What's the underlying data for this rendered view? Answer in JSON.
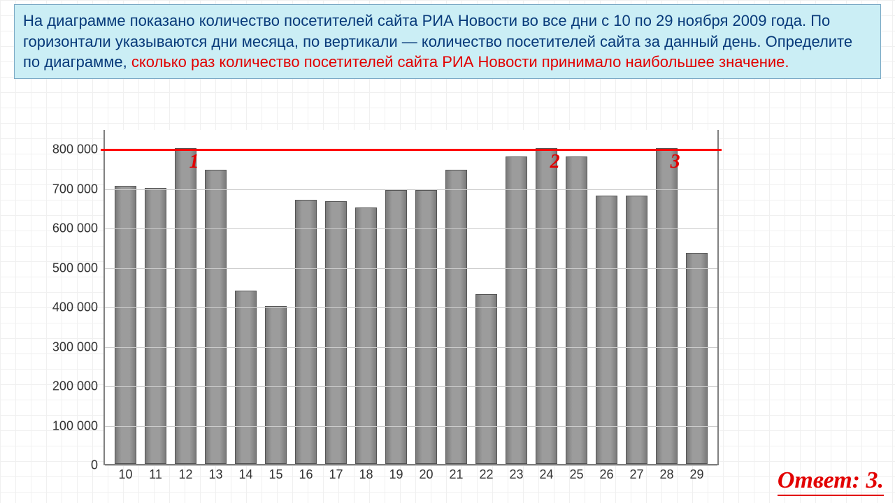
{
  "colors": {
    "box_bg": "#cbeef5",
    "box_border": "#7aa8c4",
    "text_main": "#083a7a",
    "text_highlight": "#e20000",
    "answer": "#e20000",
    "grid": "#cccccc",
    "axis": "#808080",
    "bar_fill": "#8f8f8f",
    "redline": "#ff0000"
  },
  "problem": {
    "main": "На диаграмме показано количество посетителей сайта РИА Новости во все дни с 10 по 29 ноября 2009 года. По горизонтали указываются дни месяца, по вертикали — количество посетителей сайта за данный день. Определите по диаграмме, ",
    "highlight": "сколько раз количество посетителей сайта РИА Новости принимало наибольшее значение.",
    "main_fontsize": 22,
    "main_color": "#083a7a",
    "highlight_color": "#e20000"
  },
  "chart": {
    "type": "bar",
    "ylim": [
      0,
      850000
    ],
    "ytick_step": 100000,
    "yticks": [
      "0",
      "100 000",
      "200 000",
      "300 000",
      "400 000",
      "500 000",
      "600 000",
      "700 000",
      "800 000"
    ],
    "ytick_values": [
      0,
      100000,
      200000,
      300000,
      400000,
      500000,
      600000,
      700000,
      800000
    ],
    "categories": [
      "10",
      "11",
      "12",
      "13",
      "14",
      "15",
      "16",
      "17",
      "18",
      "19",
      "20",
      "21",
      "22",
      "23",
      "24",
      "25",
      "26",
      "27",
      "28",
      "29"
    ],
    "values": [
      705000,
      700000,
      800000,
      745000,
      440000,
      400000,
      670000,
      665000,
      650000,
      695000,
      695000,
      745000,
      430000,
      780000,
      800000,
      780000,
      680000,
      680000,
      800000,
      535000
    ],
    "bar_color": "#8f8f8f",
    "bar_border": "#555555",
    "bar_width": 0.7,
    "grid_color": "#cccccc",
    "axis_color": "#808080",
    "background_color": "#ffffff",
    "tick_fontsize": 18,
    "redline_value": 800000,
    "redline_color": "#ff0000",
    "annotations": [
      {
        "label": "1",
        "bar_index": 2,
        "color": "#e20000"
      },
      {
        "label": "2",
        "bar_index": 14,
        "color": "#e20000"
      },
      {
        "label": "3",
        "bar_index": 18,
        "color": "#e20000"
      }
    ]
  },
  "answer": {
    "label": "Ответ:",
    "value": "3.",
    "color": "#e20000",
    "fontsize": 34
  }
}
